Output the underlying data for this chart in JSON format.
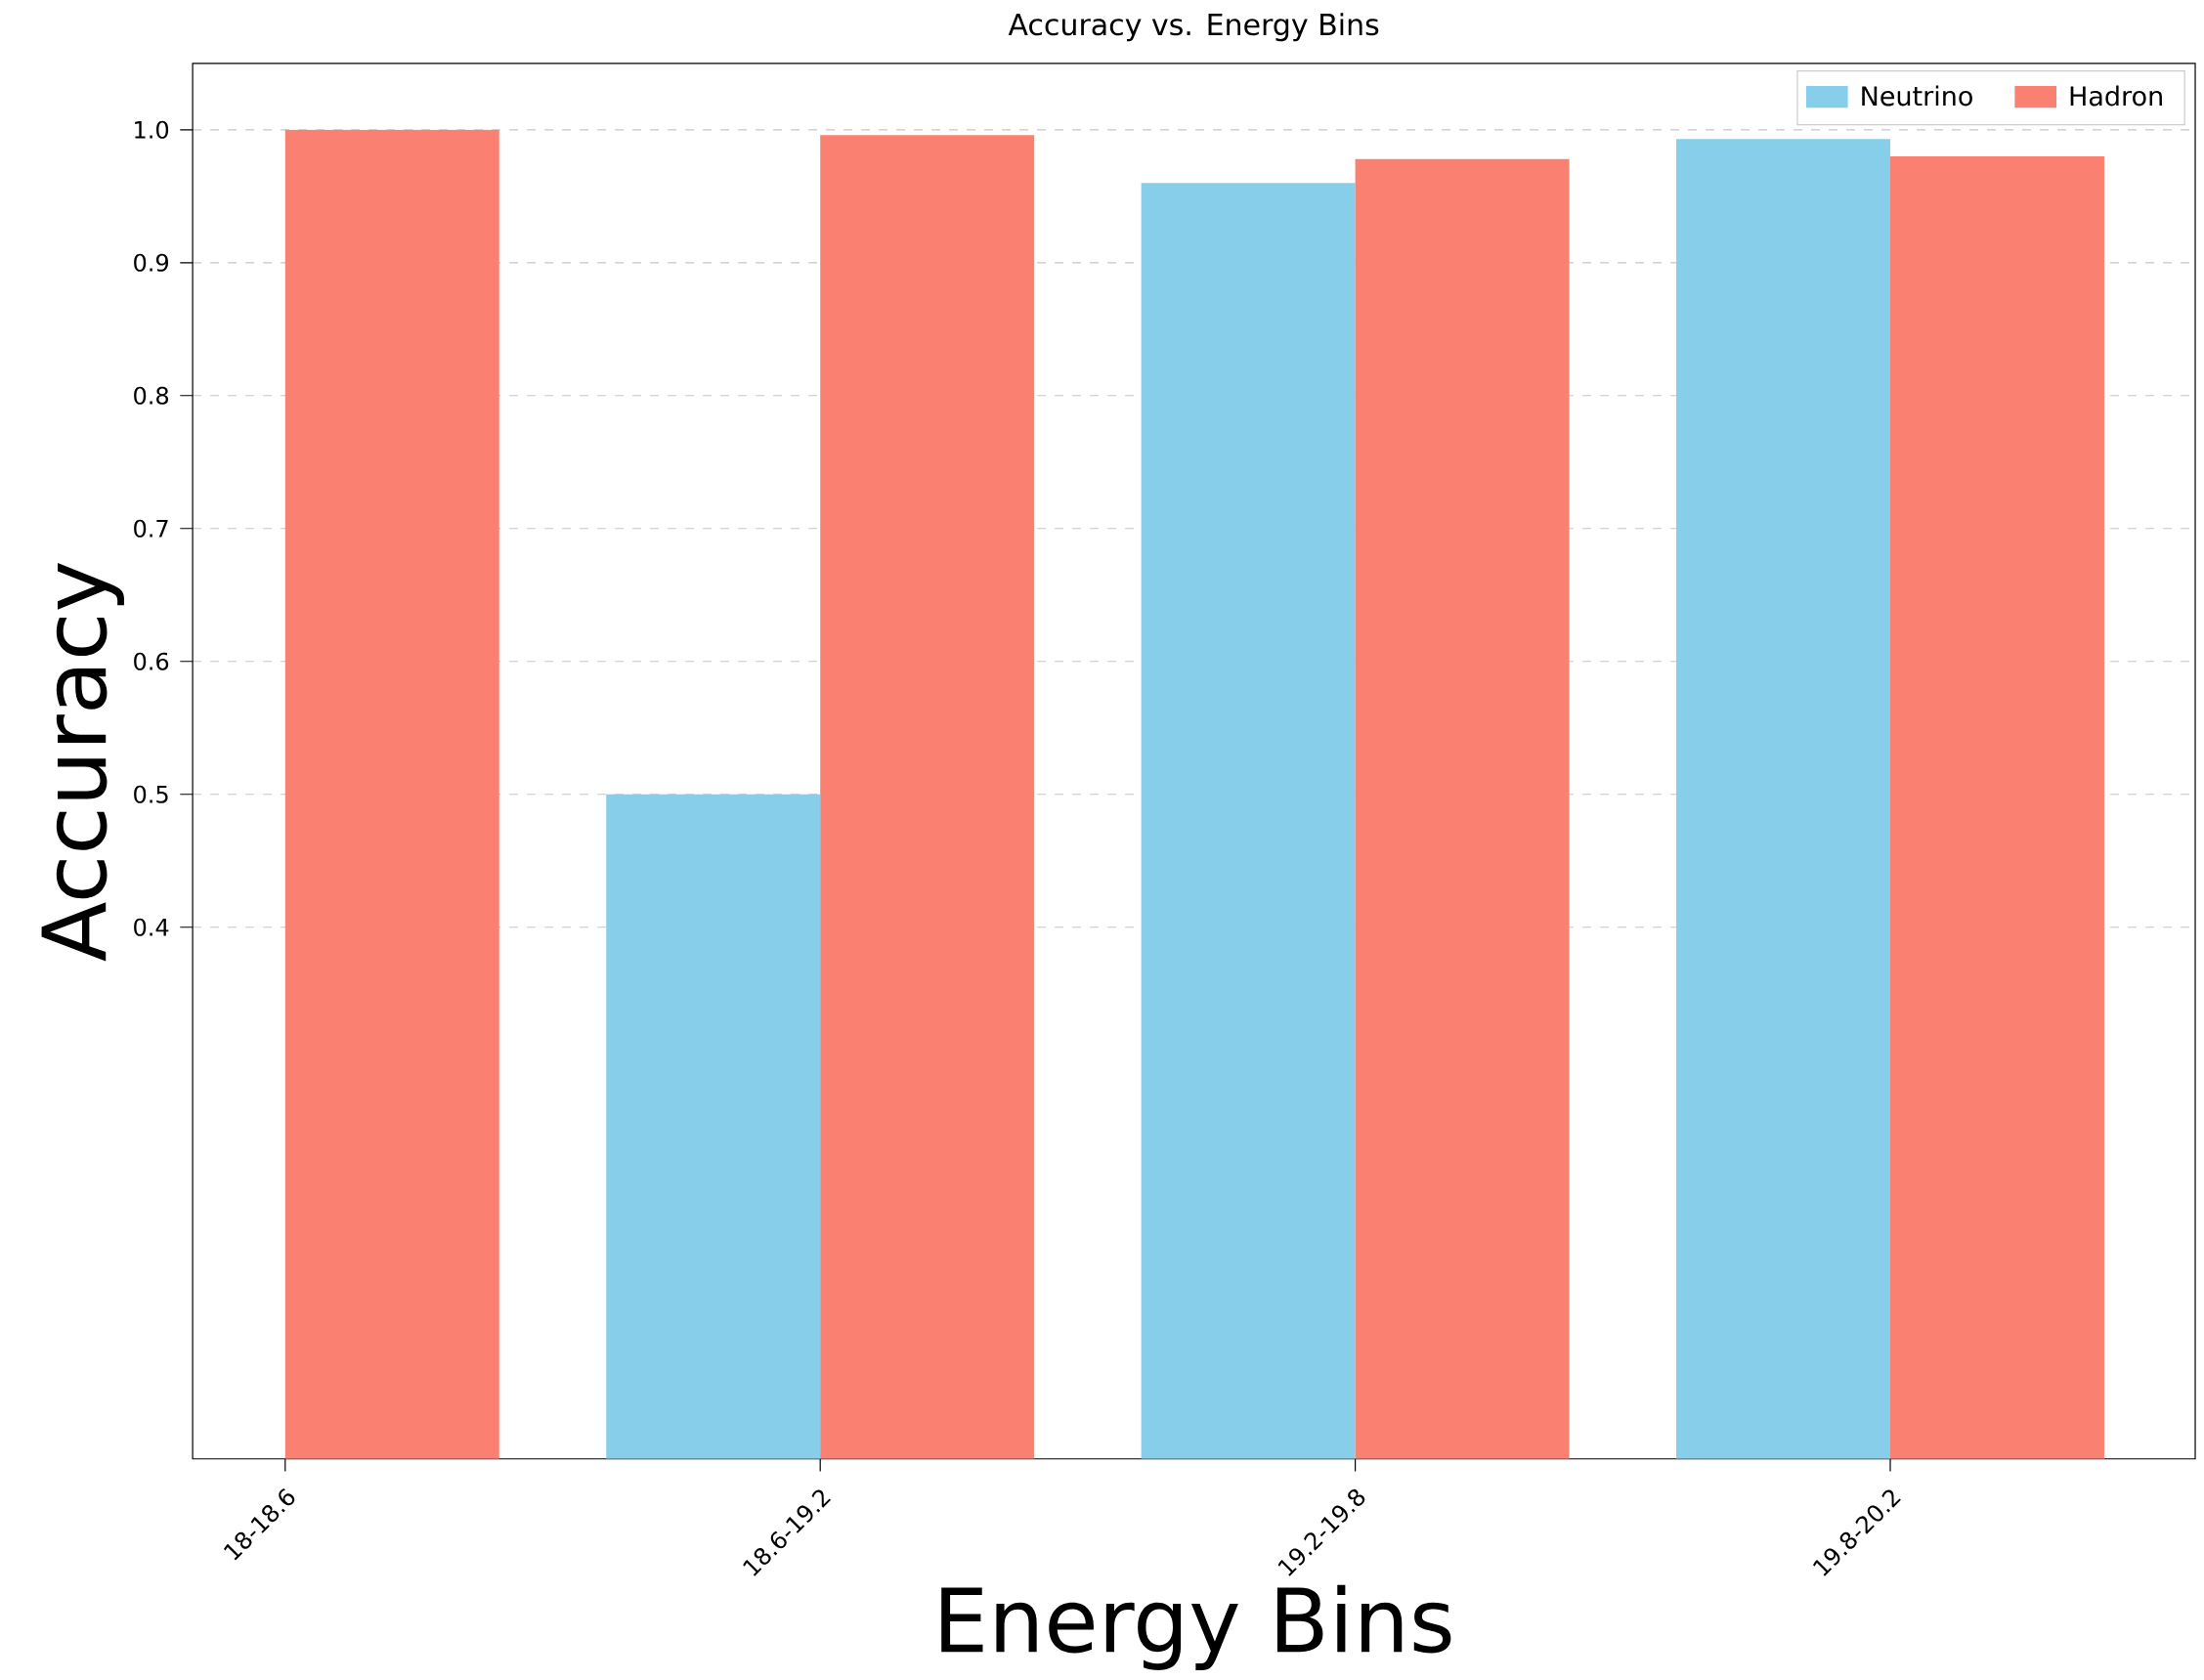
{
  "chart_data": {
    "type": "bar",
    "title": "Accuracy vs. Energy Bins",
    "xlabel": "Energy Bins",
    "ylabel": "Accuracy",
    "categories": [
      "18-18.6",
      "18.6-19.2",
      "19.2-19.8",
      "19.8-20.2"
    ],
    "series": [
      {
        "name": "Neutrino",
        "color": "#87ceeb",
        "values": [
          null,
          0.5,
          0.96,
          0.993
        ]
      },
      {
        "name": "Hadron",
        "color": "#fa8072",
        "values": [
          1.0,
          0.996,
          0.978,
          0.98
        ]
      }
    ],
    "ylim": [
      0,
      1.05
    ],
    "yticks": [
      0.4,
      0.5,
      0.6,
      0.7,
      0.8,
      0.9,
      {
        "value": 1,
        "label": "1.0"
      }
    ],
    "grid": "y",
    "legend": "top right"
  }
}
